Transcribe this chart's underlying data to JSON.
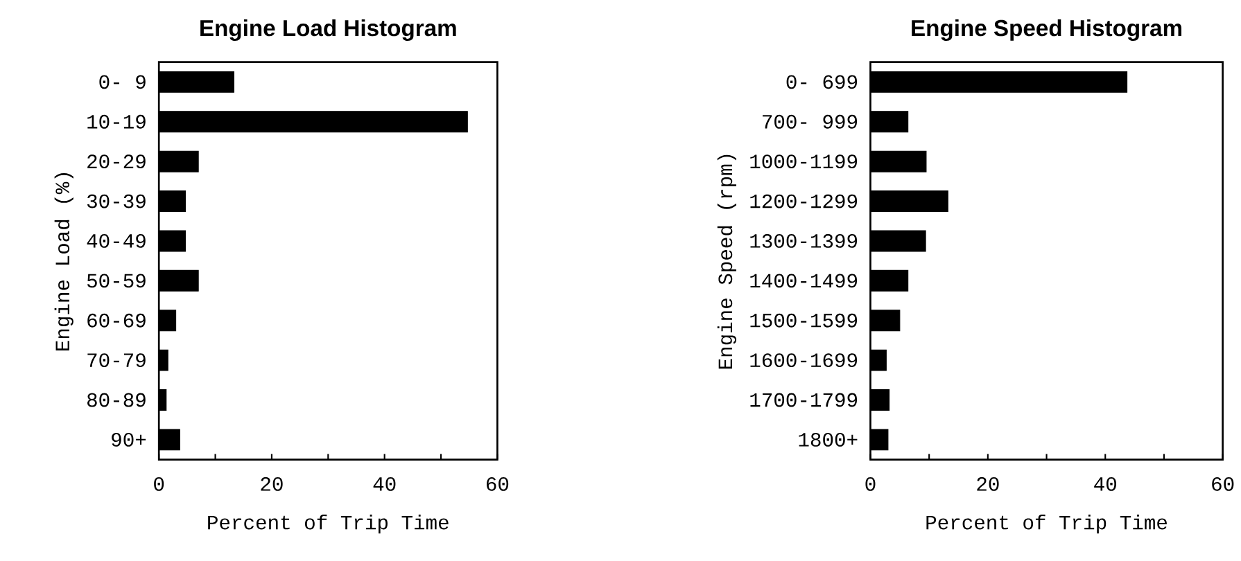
{
  "chart_data": [
    {
      "type": "bar",
      "orientation": "horizontal",
      "title": "Engine Load Histogram",
      "xlabel": "Percent of Trip Time",
      "ylabel": "Engine Load (%)",
      "categories": [
        "0- 9",
        "10-19",
        "20-29",
        "30-39",
        "40-49",
        "50-59",
        "60-69",
        "70-79",
        "80-89",
        "90+"
      ],
      "values": [
        13.3,
        54.7,
        7.0,
        4.7,
        4.7,
        7.0,
        3.0,
        1.6,
        1.3,
        3.7
      ],
      "color": "#000000",
      "xlim": [
        0,
        60
      ],
      "xticks": [
        0,
        {
          "value": 10,
          "label": null
        },
        20,
        {
          "value": 30,
          "label": null
        },
        40,
        {
          "value": 50,
          "label": null
        },
        60
      ]
    },
    {
      "type": "bar",
      "orientation": "horizontal",
      "title": "Engine Speed Histogram",
      "xlabel": "Percent of Trip Time",
      "ylabel": "Engine Speed (rpm)",
      "categories": [
        "0- 699",
        "700- 999",
        "1000-1199",
        "1200-1299",
        "1300-1399",
        "1400-1499",
        "1500-1599",
        "1600-1699",
        "1700-1799",
        "1800+"
      ],
      "values": [
        43.7,
        6.4,
        9.5,
        13.2,
        9.4,
        6.4,
        5.0,
        2.7,
        3.2,
        3.0
      ],
      "color": "#000000",
      "xlim": [
        0,
        60
      ],
      "xticks": [
        0,
        {
          "value": 10,
          "label": null
        },
        20,
        {
          "value": 30,
          "label": null
        },
        40,
        {
          "value": 50,
          "label": null
        },
        60
      ]
    }
  ]
}
